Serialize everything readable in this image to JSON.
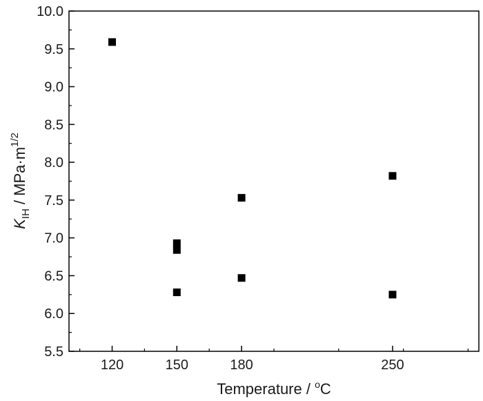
{
  "chart_data": {
    "type": "scatter",
    "xlabel": "Temperature / °C",
    "ylabel": "K_IH / MPa·m^1/2",
    "xlim": [
      100,
      290
    ],
    "ylim": [
      5.5,
      10.0
    ],
    "x_ticks": [
      "120",
      "150",
      "180",
      "250"
    ],
    "y_ticks": [
      "5.5",
      "6.0",
      "6.5",
      "7.0",
      "7.5",
      "8.0",
      "8.5",
      "9.0",
      "9.5",
      "10.0"
    ],
    "marker": "filled-square",
    "marker_color": "#000000",
    "grid": false,
    "legend": "none",
    "series": [
      {
        "points": [
          {
            "x": 120,
            "y": 9.59
          },
          {
            "x": 150,
            "y": 6.93
          },
          {
            "x": 150,
            "y": 6.84
          },
          {
            "x": 150,
            "y": 6.28
          },
          {
            "x": 180,
            "y": 7.53
          },
          {
            "x": 180,
            "y": 6.47
          },
          {
            "x": 250,
            "y": 7.82
          },
          {
            "x": 250,
            "y": 6.25
          }
        ]
      }
    ]
  },
  "labels": {
    "y_symbol": "K",
    "y_subscript": "IH",
    "y_units": " / MPa·m",
    "y_exponent": "1/2",
    "x_main": "Temperature / ",
    "x_degree": "o",
    "x_unit": "C"
  }
}
